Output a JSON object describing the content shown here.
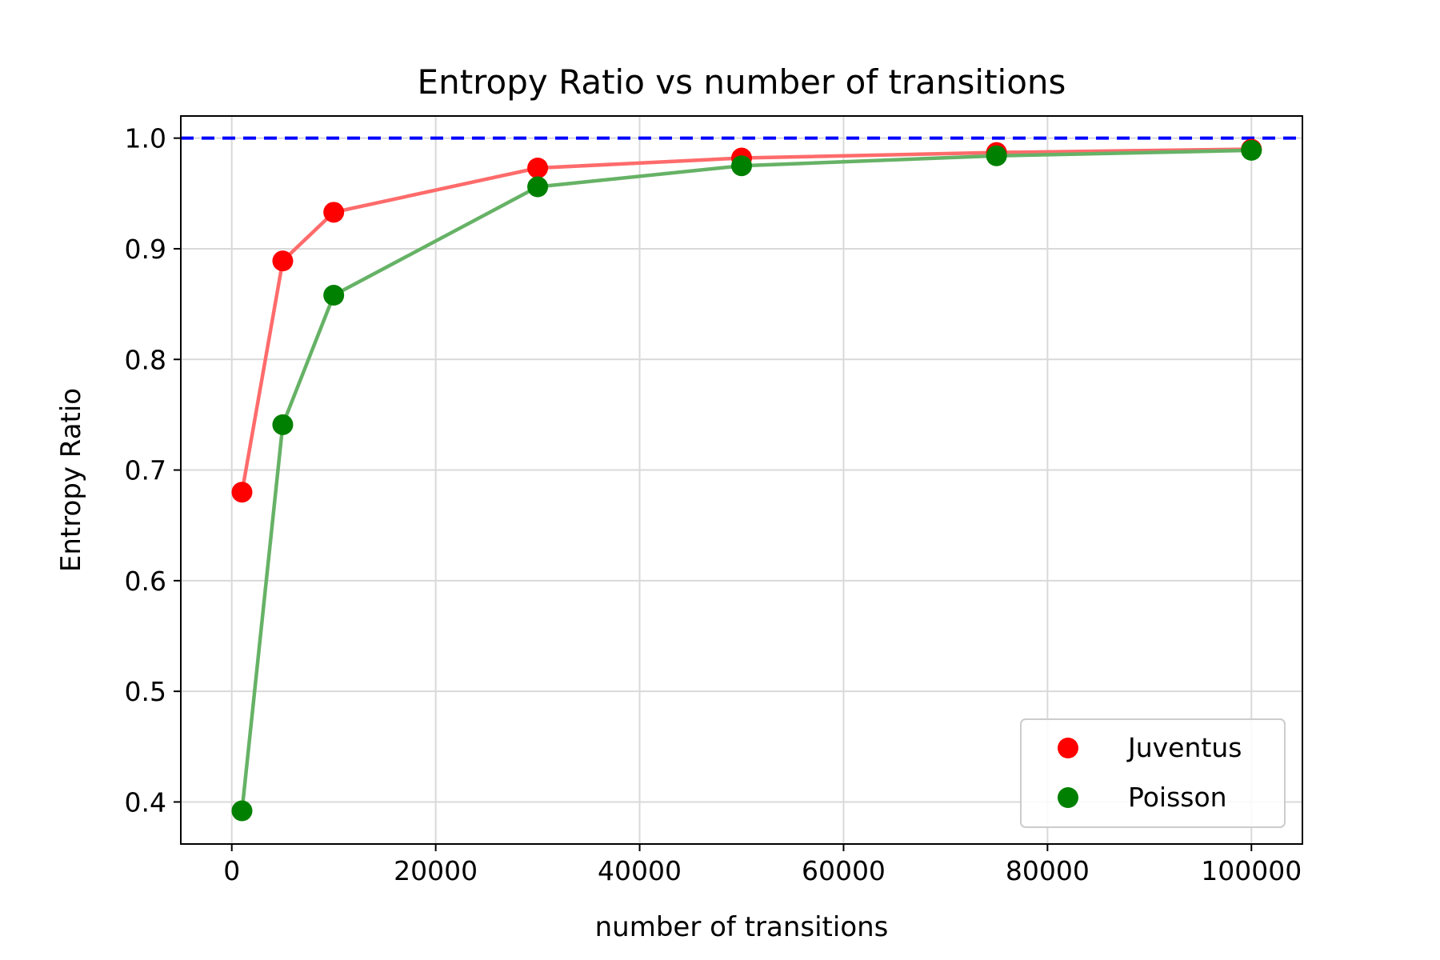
{
  "chart_data": {
    "type": "line",
    "title": "Entropy Ratio vs number of transitions",
    "xlabel": "number of transitions",
    "ylabel": "Entropy Ratio",
    "xlim": [
      -5000,
      105000
    ],
    "ylim": [
      0.362,
      1.02
    ],
    "xticks": [
      0,
      20000,
      40000,
      60000,
      80000,
      100000
    ],
    "xtick_labels": [
      "0",
      "20000",
      "40000",
      "60000",
      "80000",
      "100000"
    ],
    "yticks": [
      0.4,
      0.5,
      0.6,
      0.7,
      0.8,
      0.9,
      1.0
    ],
    "ytick_labels": [
      "0.4",
      "0.5",
      "0.6",
      "0.7",
      "0.8",
      "0.9",
      "1.0"
    ],
    "grid": true,
    "legend_position": "bottom-right",
    "reference_line": {
      "y": 1.0,
      "color": "#0000ff",
      "style": "dashed"
    },
    "x": [
      1000,
      5000,
      10000,
      30000,
      50000,
      75000,
      100000
    ],
    "series": [
      {
        "name": "Juventus",
        "marker_color": "#ff0000",
        "line_color": "#ff6b6b",
        "values": [
          0.68,
          0.889,
          0.933,
          0.973,
          0.982,
          0.987,
          0.99
        ]
      },
      {
        "name": "Poisson",
        "marker_color": "#008000",
        "line_color": "#66b266",
        "values": [
          0.392,
          0.741,
          0.858,
          0.956,
          0.975,
          0.984,
          0.989
        ]
      }
    ]
  }
}
